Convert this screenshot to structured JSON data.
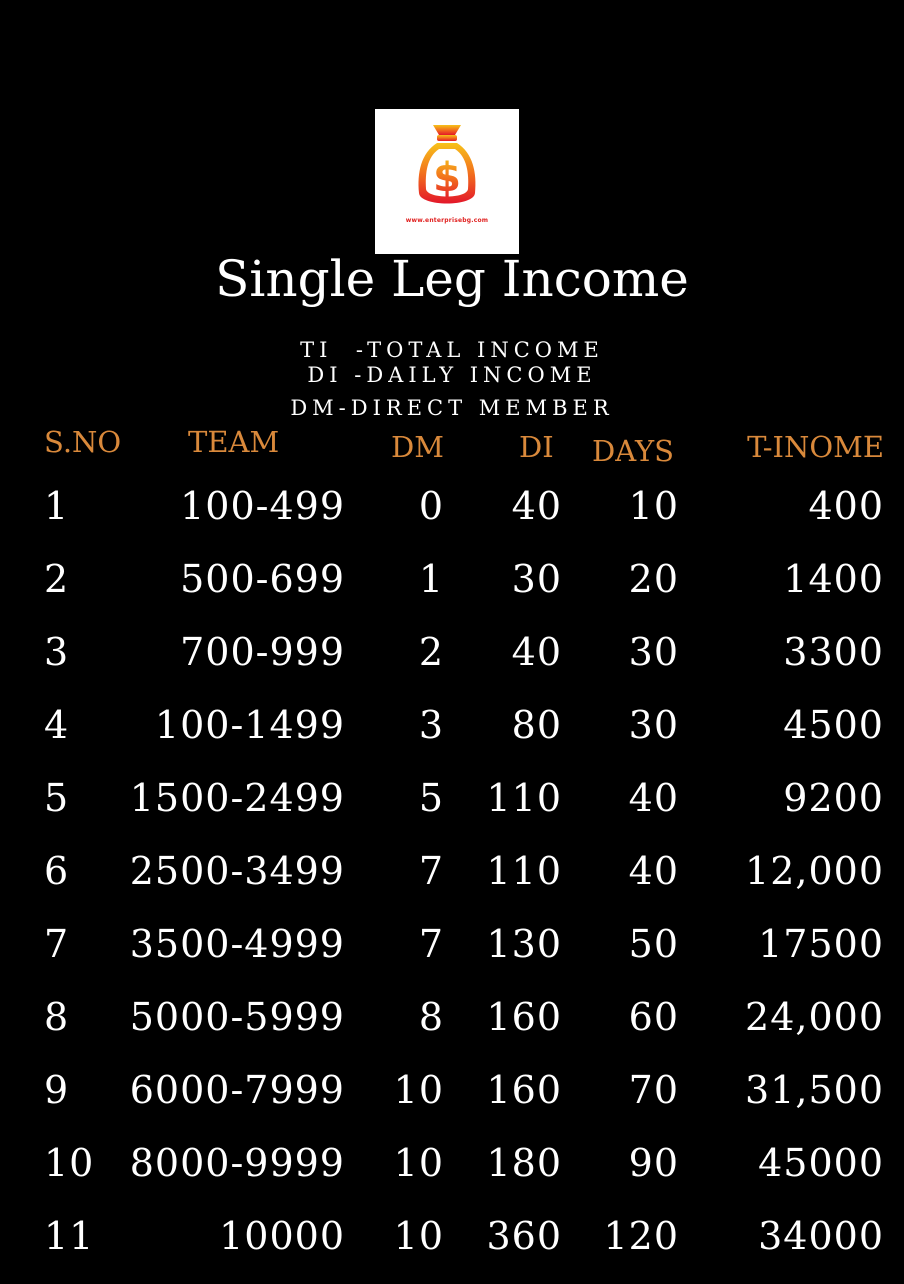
{
  "colors": {
    "background": "#000000",
    "accent": "#d9893b",
    "text": "#ffffff"
  },
  "logo": {
    "icon": "money-bag-icon",
    "url_text": "www.enterprisebg.com"
  },
  "title": "Single Leg Income",
  "legend": [
    "TI  -TOTAL INCOME",
    "DI -DAILY INCOME",
    "DM-DIRECT MEMBER"
  ],
  "table": {
    "headers": {
      "sno": "S.NO",
      "team": "TEAM",
      "dm": "DM",
      "di": "DI",
      "days": "DAYS",
      "income": "T-INOME"
    },
    "rows": [
      {
        "sno": "1",
        "team": "100-499",
        "dm": "0",
        "di": "40",
        "days": "10",
        "income": "400"
      },
      {
        "sno": "2",
        "team": "500-699",
        "dm": "1",
        "di": "30",
        "days": "20",
        "income": "1400"
      },
      {
        "sno": "3",
        "team": "700-999",
        "dm": "2",
        "di": "40",
        "days": "30",
        "income": "3300"
      },
      {
        "sno": "4",
        "team": "100-1499",
        "dm": "3",
        "di": "80",
        "days": "30",
        "income": "4500"
      },
      {
        "sno": "5",
        "team": "1500-2499",
        "dm": "5",
        "di": "110",
        "days": "40",
        "income": "9200"
      },
      {
        "sno": "6",
        "team": "2500-3499",
        "dm": "7",
        "di": "110",
        "days": "40",
        "income": "12,000"
      },
      {
        "sno": "7",
        "team": "3500-4999",
        "dm": "7",
        "di": "130",
        "days": "50",
        "income": "17500"
      },
      {
        "sno": "8",
        "team": "5000-5999",
        "dm": "8",
        "di": "160",
        "days": "60",
        "income": "24,000"
      },
      {
        "sno": "9",
        "team": "6000-7999",
        "dm": "10",
        "di": "160",
        "days": "70",
        "income": "31,500"
      },
      {
        "sno": "10",
        "team": "8000-9999",
        "dm": "10",
        "di": "180",
        "days": "90",
        "income": "45000"
      },
      {
        "sno": "11",
        "team": "10000",
        "dm": "10",
        "di": "360",
        "days": "120",
        "income": "34000"
      }
    ]
  }
}
